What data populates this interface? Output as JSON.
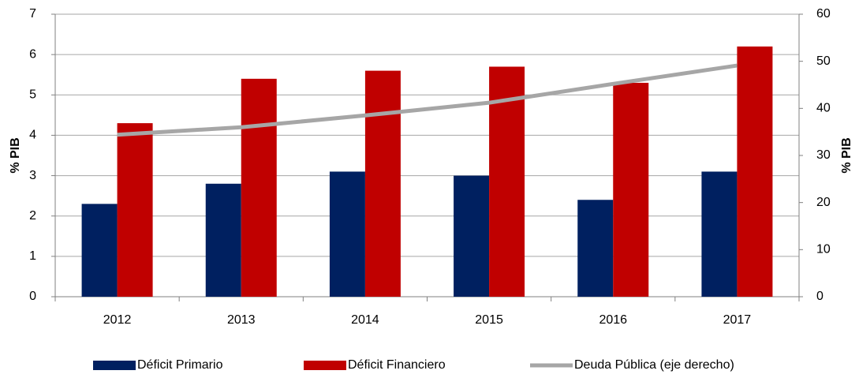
{
  "chart_data": {
    "type": "bar_line",
    "categories": [
      "2012",
      "2013",
      "2014",
      "2015",
      "2016",
      "2017"
    ],
    "series": [
      {
        "name": "Déficit Primario",
        "color": "#002060",
        "type": "bar",
        "values": [
          2.3,
          2.8,
          3.1,
          3.0,
          2.4,
          3.1
        ]
      },
      {
        "name": "Déficit Financiero",
        "color": "#c00000",
        "type": "bar",
        "values": [
          4.3,
          5.4,
          5.6,
          5.7,
          5.3,
          6.2
        ]
      },
      {
        "name": "Deuda Pública (eje derecho)",
        "color": "#a6a6a6",
        "type": "line",
        "axis": "y2",
        "values": [
          34.4,
          36.0,
          38.5,
          41.2,
          45.2,
          49.1
        ]
      }
    ],
    "ylabel": "% PIB",
    "y2label": "% PIB",
    "ylim": [
      0,
      7
    ],
    "yticks": [
      0,
      1,
      2,
      3,
      4,
      5,
      6,
      7
    ],
    "y2lim": [
      0,
      60
    ],
    "y2ticks": [
      0,
      10,
      20,
      30,
      40,
      50,
      60
    ],
    "grid": true,
    "legend": "bottom"
  }
}
